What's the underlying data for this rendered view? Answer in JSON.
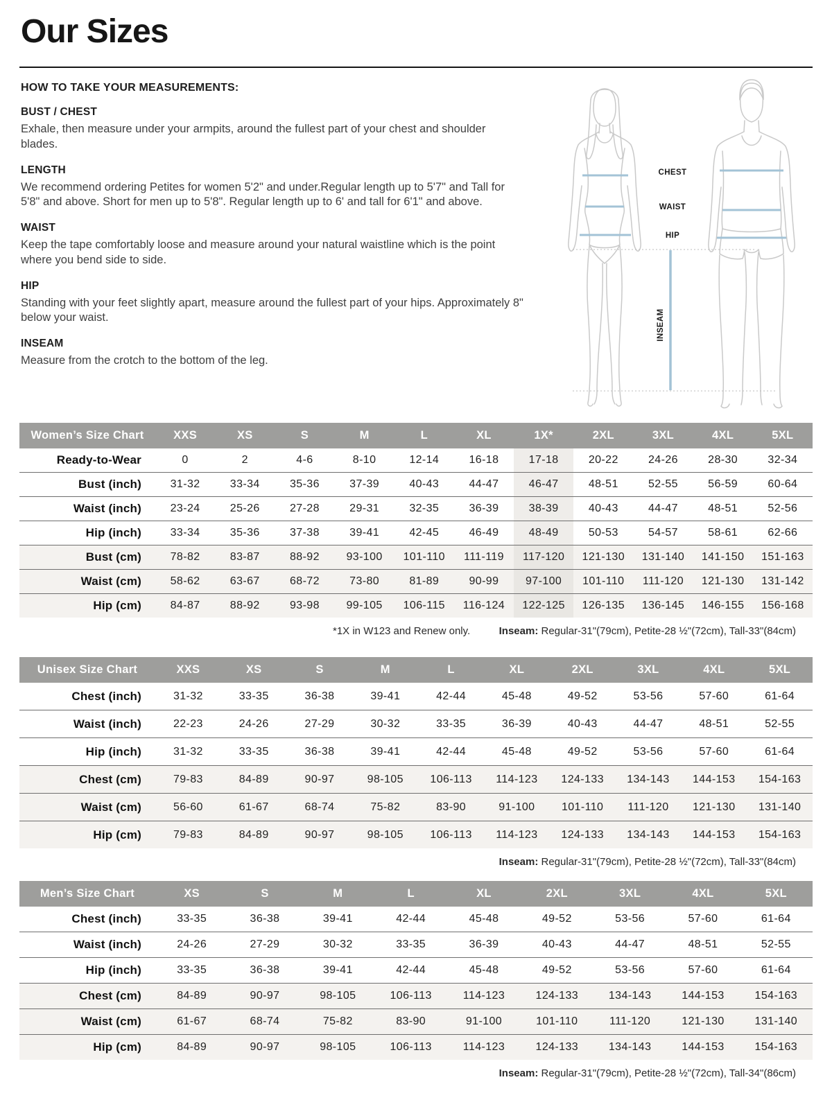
{
  "page": {
    "title": "Our Sizes"
  },
  "instructions": {
    "heading": "HOW TO TAKE YOUR MEASUREMENTS:",
    "sections": [
      {
        "title": "BUST / CHEST",
        "body": "Exhale, then measure under your armpits, around the fullest part of your chest and shoulder blades."
      },
      {
        "title": "LENGTH",
        "body": "We recommend ordering Petites for women 5'2\" and under.Regular length up to 5'7\" and Tall for 5'8\" and above. Short for men up to 5'8\". Regular length up to 6' and tall for 6'1\" and above."
      },
      {
        "title": "WAIST",
        "body": "Keep the tape comfortably loose and measure around your natural waistline which is the point where you bend side to side."
      },
      {
        "title": "HIP",
        "body": "Standing with your feet slightly apart, measure around the fullest part of your hips. Approximately 8\" below your waist."
      },
      {
        "title": "INSEAM",
        "body": "Measure from the crotch to the bottom of the leg."
      }
    ]
  },
  "diagram": {
    "figures": [
      "woman",
      "man"
    ],
    "labels": {
      "chest": "CHEST",
      "waist": "WAIST",
      "hip": "HIP",
      "inseam": "INSEAM"
    },
    "measure_line_color": "#a3c3d6",
    "outline_color": "#c9c9c9"
  },
  "colors": {
    "table_header_bg": "#9e9e9c",
    "shaded_row_bg": "#f4f2ef",
    "highlight_col_bg": "#efedea",
    "divider": "#141414"
  },
  "tables": [
    {
      "title": "Women’s Size Chart",
      "columns": [
        "XXS",
        "XS",
        "S",
        "M",
        "L",
        "XL",
        "1X*",
        "2XL",
        "3XL",
        "4XL",
        "5XL"
      ],
      "highlight_col": 6,
      "rows": [
        {
          "label": "Ready-to-Wear",
          "shaded": false,
          "values": [
            "0",
            "2",
            "4-6",
            "8-10",
            "12-14",
            "16-18",
            "17-18",
            "20-22",
            "24-26",
            "28-30",
            "32-34"
          ]
        },
        {
          "label": "Bust (inch)",
          "shaded": false,
          "values": [
            "31-32",
            "33-34",
            "35-36",
            "37-39",
            "40-43",
            "44-47",
            "46-47",
            "48-51",
            "52-55",
            "56-59",
            "60-64"
          ]
        },
        {
          "label": "Waist (inch)",
          "shaded": false,
          "values": [
            "23-24",
            "25-26",
            "27-28",
            "29-31",
            "32-35",
            "36-39",
            "38-39",
            "40-43",
            "44-47",
            "48-51",
            "52-56"
          ]
        },
        {
          "label": "Hip (inch)",
          "shaded": false,
          "values": [
            "33-34",
            "35-36",
            "37-38",
            "39-41",
            "42-45",
            "46-49",
            "48-49",
            "50-53",
            "54-57",
            "58-61",
            "62-66"
          ]
        },
        {
          "label": "Bust (cm)",
          "shaded": true,
          "values": [
            "78-82",
            "83-87",
            "88-92",
            "93-100",
            "101-110",
            "111-119",
            "117-120",
            "121-130",
            "131-140",
            "141-150",
            "151-163"
          ]
        },
        {
          "label": "Waist (cm)",
          "shaded": true,
          "values": [
            "58-62",
            "63-67",
            "68-72",
            "73-80",
            "81-89",
            "90-99",
            "97-100",
            "101-110",
            "111-120",
            "121-130",
            "131-142"
          ]
        },
        {
          "label": "Hip (cm)",
          "shaded": true,
          "values": [
            "84-87",
            "88-92",
            "93-98",
            "99-105",
            "106-115",
            "116-124",
            "122-125",
            "126-135",
            "136-145",
            "146-155",
            "156-168"
          ]
        }
      ],
      "footnote_left": "*1X in W123 and Renew only.",
      "inseam_label": "Inseam:",
      "inseam_text": " Regular-31\"(79cm), Petite-28 ½\"(72cm), Tall-33\"(84cm)"
    },
    {
      "title": "Unisex Size Chart",
      "columns": [
        "XXS",
        "XS",
        "S",
        "M",
        "L",
        "XL",
        "2XL",
        "3XL",
        "4XL",
        "5XL"
      ],
      "highlight_col": null,
      "rows": [
        {
          "label": "Chest (inch)",
          "shaded": false,
          "values": [
            "31-32",
            "33-35",
            "36-38",
            "39-41",
            "42-44",
            "45-48",
            "49-52",
            "53-56",
            "57-60",
            "61-64"
          ]
        },
        {
          "label": "Waist (inch)",
          "shaded": false,
          "values": [
            "22-23",
            "24-26",
            "27-29",
            "30-32",
            "33-35",
            "36-39",
            "40-43",
            "44-47",
            "48-51",
            "52-55"
          ]
        },
        {
          "label": "Hip (inch)",
          "shaded": false,
          "values": [
            "31-32",
            "33-35",
            "36-38",
            "39-41",
            "42-44",
            "45-48",
            "49-52",
            "53-56",
            "57-60",
            "61-64"
          ]
        },
        {
          "label": "Chest (cm)",
          "shaded": true,
          "values": [
            "79-83",
            "84-89",
            "90-97",
            "98-105",
            "106-113",
            "114-123",
            "124-133",
            "134-143",
            "144-153",
            "154-163"
          ]
        },
        {
          "label": "Waist (cm)",
          "shaded": true,
          "values": [
            "56-60",
            "61-67",
            "68-74",
            "75-82",
            "83-90",
            "91-100",
            "101-110",
            "111-120",
            "121-130",
            "131-140"
          ]
        },
        {
          "label": "Hip (cm)",
          "shaded": true,
          "values": [
            "79-83",
            "84-89",
            "90-97",
            "98-105",
            "106-113",
            "114-123",
            "124-133",
            "134-143",
            "144-153",
            "154-163"
          ]
        }
      ],
      "footnote_left": "",
      "inseam_label": "Inseam:",
      "inseam_text": " Regular-31\"(79cm), Petite-28 ½\"(72cm), Tall-33\"(84cm)"
    },
    {
      "title": "Men’s Size Chart",
      "columns": [
        "XS",
        "S",
        "M",
        "L",
        "XL",
        "2XL",
        "3XL",
        "4XL",
        "5XL"
      ],
      "highlight_col": null,
      "rows": [
        {
          "label": "Chest (inch)",
          "shaded": false,
          "values": [
            "33-35",
            "36-38",
            "39-41",
            "42-44",
            "45-48",
            "49-52",
            "53-56",
            "57-60",
            "61-64"
          ]
        },
        {
          "label": "Waist (inch)",
          "shaded": false,
          "values": [
            "24-26",
            "27-29",
            "30-32",
            "33-35",
            "36-39",
            "40-43",
            "44-47",
            "48-51",
            "52-55"
          ]
        },
        {
          "label": "Hip (inch)",
          "shaded": false,
          "values": [
            "33-35",
            "36-38",
            "39-41",
            "42-44",
            "45-48",
            "49-52",
            "53-56",
            "57-60",
            "61-64"
          ]
        },
        {
          "label": "Chest (cm)",
          "shaded": true,
          "values": [
            "84-89",
            "90-97",
            "98-105",
            "106-113",
            "114-123",
            "124-133",
            "134-143",
            "144-153",
            "154-163"
          ]
        },
        {
          "label": "Waist (cm)",
          "shaded": true,
          "values": [
            "61-67",
            "68-74",
            "75-82",
            "83-90",
            "91-100",
            "101-110",
            "111-120",
            "121-130",
            "131-140"
          ]
        },
        {
          "label": "Hip (cm)",
          "shaded": true,
          "values": [
            "84-89",
            "90-97",
            "98-105",
            "106-113",
            "114-123",
            "124-133",
            "134-143",
            "144-153",
            "154-163"
          ]
        }
      ],
      "footnote_left": "",
      "inseam_label": "Inseam:",
      "inseam_text": " Regular-31\"(79cm), Petite-28 ½\"(72cm), Tall-34\"(86cm)"
    }
  ]
}
